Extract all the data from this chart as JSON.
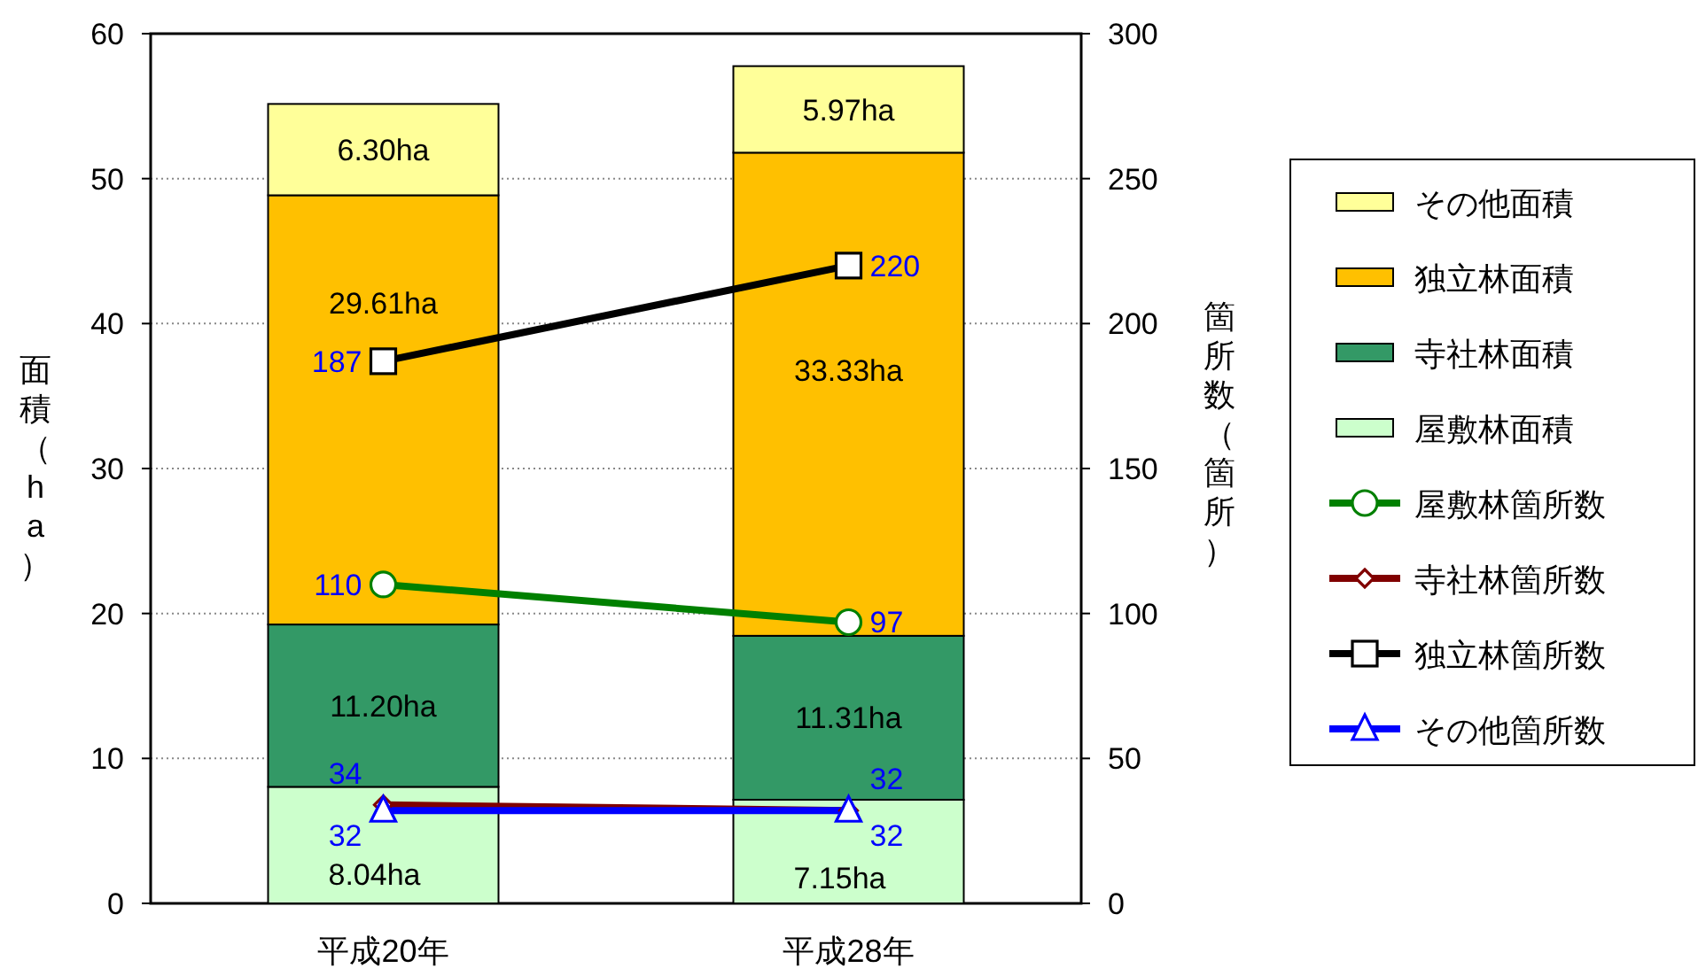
{
  "chart_data": {
    "type": "bar",
    "stacked": true,
    "ylabel": "面積（ha）",
    "y2label": "箇所数（箇所）",
    "categories": [
      "平成20年",
      "平成28年"
    ],
    "ylim": [
      0,
      60
    ],
    "yticks": [
      0,
      10,
      20,
      30,
      40,
      50,
      60
    ],
    "y2lim": [
      0,
      300
    ],
    "y2ticks": [
      0,
      50,
      100,
      150,
      200,
      250,
      300
    ],
    "grid": "y",
    "legend": "right",
    "series": [
      {
        "name": "屋敷林面積",
        "color": "#ccffcc",
        "values": [
          8.04,
          7.15
        ],
        "value_labels": [
          "8.04ha",
          "7.15ha"
        ]
      },
      {
        "name": "寺社林面積",
        "color": "#339966",
        "values": [
          11.2,
          11.31
        ],
        "value_labels": [
          "11.20ha",
          "11.31ha"
        ]
      },
      {
        "name": "独立林面積",
        "color": "#ffc000",
        "values": [
          29.61,
          33.33
        ],
        "value_labels": [
          "29.61ha",
          "33.33ha"
        ]
      },
      {
        "name": "その他面積",
        "color": "#ffff99",
        "values": [
          6.3,
          5.97
        ],
        "value_labels": [
          "6.30ha",
          "5.97ha"
        ]
      },
      {
        "name": "屋敷林箇所数",
        "type": "line",
        "axis": "y2",
        "marker": "circle",
        "color": "#008000",
        "values": [
          110,
          97
        ],
        "value_labels": [
          "110",
          "97"
        ]
      },
      {
        "name": "寺社林箇所数",
        "type": "line",
        "axis": "y2",
        "marker": "diamond",
        "color": "#800000",
        "values": [
          34,
          32
        ],
        "value_labels": [
          "34",
          "32"
        ]
      },
      {
        "name": "独立林箇所数",
        "type": "line",
        "axis": "y2",
        "marker": "square",
        "color": "#000000",
        "values": [
          187,
          220
        ],
        "value_labels": [
          "187",
          "220"
        ]
      },
      {
        "name": "その他箇所数",
        "type": "line",
        "axis": "y2",
        "marker": "triangle",
        "color": "#0000ff",
        "values": [
          32,
          32
        ],
        "value_labels": [
          "32",
          "32"
        ]
      }
    ]
  }
}
